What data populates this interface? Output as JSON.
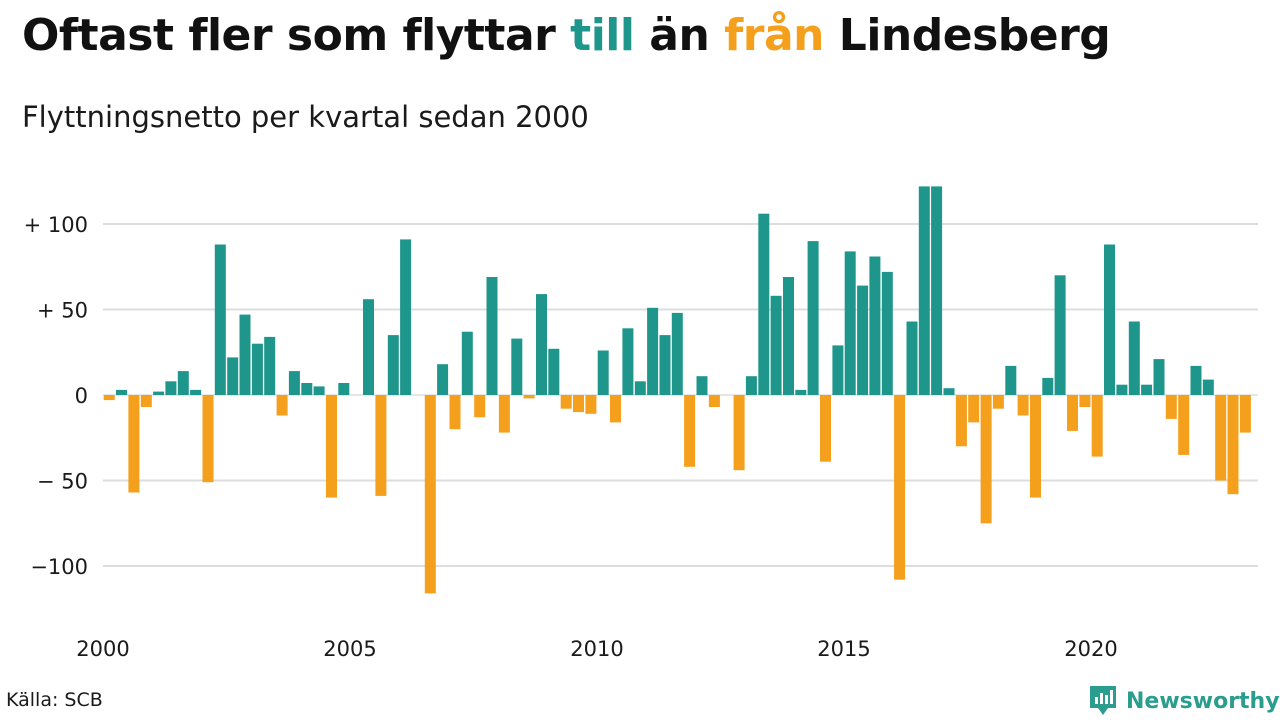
{
  "title": {
    "part1": "Oftast fler som flyttar ",
    "highlight_in": "till",
    "part2": " än ",
    "highlight_out": "från",
    "part3": " Lindesberg"
  },
  "subtitle": "Flyttningsnetto per kvartal sedan 2000",
  "source": "Källa: SCB",
  "brand": {
    "name": "Newsworthy",
    "icon": "bar-chart-icon"
  },
  "colors": {
    "positive": "#1f968b",
    "negative": "#f5a01c",
    "grid": "#dddddd"
  },
  "chart_data": {
    "type": "bar",
    "x_start": "2000 Q1",
    "x_ticks": [
      "2000",
      "2005",
      "2010",
      "2015",
      "2020"
    ],
    "y_ticks": [
      {
        "value": 100,
        "label": "+ 100"
      },
      {
        "value": 50,
        "label": "+  50"
      },
      {
        "value": 0,
        "label": "0"
      },
      {
        "value": -50,
        "label": "− 50"
      },
      {
        "value": -100,
        "label": "−100"
      }
    ],
    "ylim": [
      -120,
      125
    ],
    "grid": true,
    "values": [
      -3,
      3,
      -57,
      -7,
      2,
      8,
      14,
      3,
      -51,
      88,
      22,
      47,
      30,
      34,
      -12,
      14,
      7,
      5,
      -60,
      7,
      0,
      56,
      -59,
      35,
      91,
      0,
      -116,
      18,
      -20,
      37,
      -13,
      69,
      -22,
      33,
      -2,
      59,
      27,
      -8,
      -10,
      -11,
      26,
      -16,
      39,
      8,
      51,
      35,
      48,
      -42,
      11,
      -7,
      0,
      -44,
      11,
      106,
      58,
      69,
      3,
      90,
      -39,
      29,
      84,
      64,
      81,
      72,
      -108,
      43,
      122,
      122,
      4,
      -30,
      -16,
      -75,
      -8,
      17,
      -12,
      -60,
      10,
      70,
      -21,
      -7,
      -36,
      88,
      6,
      43,
      6,
      21,
      -14,
      -35,
      17,
      9,
      -50,
      -58,
      -22
    ]
  }
}
